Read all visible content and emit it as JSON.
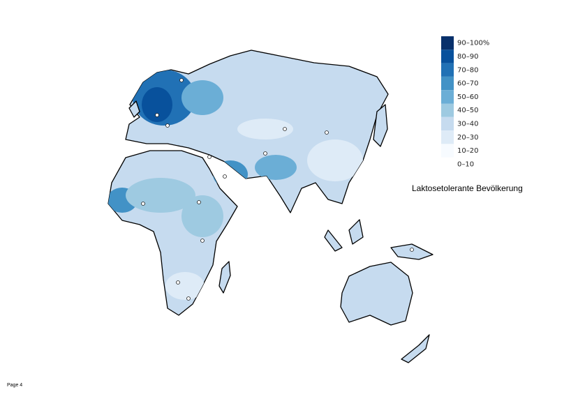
{
  "legend": {
    "title": "Laktosetolerante Bevölkerung",
    "items": [
      {
        "label": "90–100%",
        "color": "#08306b"
      },
      {
        "label": "80–90",
        "color": "#08519c"
      },
      {
        "label": "70–80",
        "color": "#2171b5"
      },
      {
        "label": "60–70",
        "color": "#4292c6"
      },
      {
        "label": "50–60",
        "color": "#6baed6"
      },
      {
        "label": "40–50",
        "color": "#9ecae1"
      },
      {
        "label": "30–40",
        "color": "#c6dbef"
      },
      {
        "label": "20–30",
        "color": "#deebf7"
      },
      {
        "label": "10–20",
        "color": "#f7fbff"
      },
      {
        "label": "0–10",
        "color": "#ffffff"
      }
    ]
  },
  "footer": {
    "page": "Page 4"
  }
}
